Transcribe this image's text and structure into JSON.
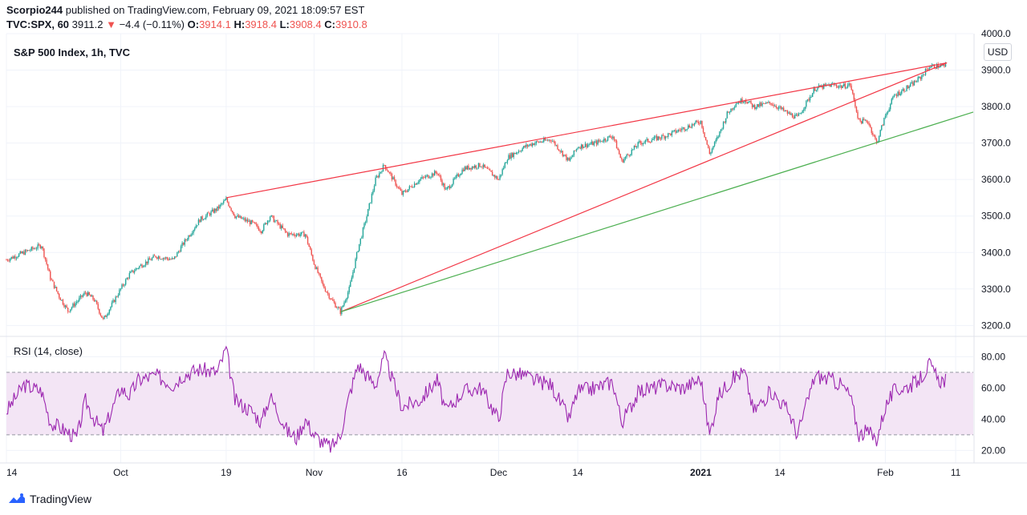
{
  "header": {
    "publisher": "Scorpio244",
    "published_text": "published on TradingView.com, February 09, 2021 18:09:57 EST",
    "symbol": "TVC:SPX, 60",
    "last": "3911.2",
    "change_arrow": "▼",
    "change": "−4.4 (−0.11%)",
    "o_label": "O:",
    "o_value": "3914.1",
    "h_label": "H:",
    "h_value": "3918.4",
    "l_label": "L:",
    "l_value": "3908.4",
    "c_label": "C:",
    "c_value": "3910.8"
  },
  "main_title": "S&P 500 Index, 1h, TVC",
  "currency": "USD",
  "rsi_title": "RSI (14, close)",
  "footer": {
    "brand": "TradingView"
  },
  "colors": {
    "up": "#26a69a",
    "down": "#ef5350",
    "rsi": "#9c27b0",
    "rsi_band": "#f3e5f5",
    "wedge": "#f23645",
    "support": "#4caf50"
  },
  "chart_data": [
    {
      "type": "candlestick",
      "title": "S&P 500 Index, 1h, TVC",
      "ylim": [
        3170,
        4000
      ],
      "yticks": [
        "4000.0",
        "3900.0",
        "3800.0",
        "3700.0",
        "3600.0",
        "3500.0",
        "3400.0",
        "3300.0",
        "3200.0"
      ],
      "x_ticks": [
        "14",
        "Oct",
        "19",
        "Nov",
        "16",
        "Dec",
        "14",
        "2021",
        "14",
        "Feb",
        "11"
      ],
      "x_range": [
        "2020-09-14",
        "2021-02-15"
      ],
      "close_path": [
        [
          "2020-09-14",
          3380
        ],
        [
          "2020-09-16",
          3400
        ],
        [
          "2020-09-18",
          3420
        ],
        [
          "2020-09-21",
          3330
        ],
        [
          "2020-09-22",
          3280
        ],
        [
          "2020-09-23",
          3240
        ],
        [
          "2020-09-25",
          3290
        ],
        [
          "2020-09-28",
          3270
        ],
        [
          "2020-09-29",
          3215
        ],
        [
          "2020-10-01",
          3300
        ],
        [
          "2020-10-02",
          3340
        ],
        [
          "2020-10-05",
          3360
        ],
        [
          "2020-10-07",
          3390
        ],
        [
          "2020-10-09",
          3380
        ],
        [
          "2020-10-12",
          3420
        ],
        [
          "2020-10-14",
          3490
        ],
        [
          "2020-10-16",
          3520
        ],
        [
          "2020-10-19",
          3545
        ],
        [
          "2020-10-20",
          3500
        ],
        [
          "2020-10-22",
          3480
        ],
        [
          "2020-10-23",
          3460
        ],
        [
          "2020-10-26",
          3500
        ],
        [
          "2020-10-28",
          3450
        ],
        [
          "2020-10-30",
          3450
        ],
        [
          "2020-11-02",
          3370
        ],
        [
          "2020-11-03",
          3310
        ],
        [
          "2020-11-04",
          3270
        ],
        [
          "2020-11-05",
          3237
        ],
        [
          "2020-11-06",
          3300
        ],
        [
          "2020-11-09",
          3410
        ],
        [
          "2020-11-10",
          3500
        ],
        [
          "2020-11-11",
          3600
        ],
        [
          "2020-11-12",
          3640
        ],
        [
          "2020-11-16",
          3560
        ],
        [
          "2020-11-18",
          3600
        ],
        [
          "2020-11-20",
          3620
        ],
        [
          "2020-11-23",
          3570
        ],
        [
          "2020-11-25",
          3630
        ],
        [
          "2020-11-27",
          3640
        ],
        [
          "2020-12-01",
          3600
        ],
        [
          "2020-12-02",
          3660
        ],
        [
          "2020-12-04",
          3690
        ],
        [
          "2020-12-07",
          3700
        ],
        [
          "2020-12-09",
          3710
        ],
        [
          "2020-12-11",
          3650
        ],
        [
          "2020-12-14",
          3690
        ],
        [
          "2020-12-16",
          3700
        ],
        [
          "2020-12-18",
          3720
        ],
        [
          "2020-12-21",
          3650
        ],
        [
          "2020-12-23",
          3700
        ],
        [
          "2020-12-28",
          3720
        ],
        [
          "2020-12-30",
          3740
        ],
        [
          "2021-01-01",
          3760
        ],
        [
          "2021-01-04",
          3670
        ],
        [
          "2021-01-05",
          3720
        ],
        [
          "2021-01-06",
          3780
        ],
        [
          "2021-01-07",
          3810
        ],
        [
          "2021-01-08",
          3820
        ],
        [
          "2021-01-11",
          3800
        ],
        [
          "2021-01-13",
          3810
        ],
        [
          "2021-01-15",
          3780
        ],
        [
          "2021-01-18",
          3770
        ],
        [
          "2021-01-20",
          3850
        ],
        [
          "2021-01-22",
          3860
        ],
        [
          "2021-01-25",
          3855
        ],
        [
          "2021-01-26",
          3860
        ],
        [
          "2021-01-27",
          3760
        ],
        [
          "2021-01-28",
          3760
        ],
        [
          "2021-01-29",
          3700
        ],
        [
          "2021-02-01",
          3775
        ],
        [
          "2021-02-02",
          3830
        ],
        [
          "2021-02-04",
          3860
        ],
        [
          "2021-02-05",
          3880
        ],
        [
          "2021-02-08",
          3910
        ],
        [
          "2021-02-09",
          3911
        ]
      ],
      "trendlines": [
        {
          "name": "upper",
          "color": "#f23645",
          "from": [
            "2020-10-19",
            3550
          ],
          "to": [
            "2021-02-10",
            3920
          ]
        },
        {
          "name": "lower",
          "color": "#f23645",
          "from": [
            "2020-11-05",
            3237
          ],
          "to": [
            "2021-02-10",
            3920
          ]
        },
        {
          "name": "support",
          "color": "#4caf50",
          "from": [
            "2020-11-05",
            3237
          ],
          "to": [
            "2021-02-15",
            3785
          ]
        }
      ]
    },
    {
      "type": "line",
      "title": "RSI (14, close)",
      "ylim": [
        12,
        92
      ],
      "yticks": [
        "80.00",
        "60.00",
        "40.00",
        "20.00"
      ],
      "bands": [
        70,
        30
      ],
      "series": [
        {
          "values": [
            [
              "2020-09-14",
              45
            ],
            [
              "2020-09-16",
              62
            ],
            [
              "2020-09-18",
              58
            ],
            [
              "2020-09-21",
              38
            ],
            [
              "2020-09-22",
              35
            ],
            [
              "2020-09-24",
              28
            ],
            [
              "2020-09-25",
              52
            ],
            [
              "2020-09-28",
              40
            ],
            [
              "2020-09-29",
              32
            ],
            [
              "2020-10-01",
              60
            ],
            [
              "2020-10-02",
              55
            ],
            [
              "2020-10-05",
              65
            ],
            [
              "2020-10-07",
              68
            ],
            [
              "2020-10-09",
              62
            ],
            [
              "2020-10-12",
              68
            ],
            [
              "2020-10-14",
              72
            ],
            [
              "2020-10-16",
              70
            ],
            [
              "2020-10-19",
              85
            ],
            [
              "2020-10-20",
              52
            ],
            [
              "2020-10-22",
              45
            ],
            [
              "2020-10-23",
              38
            ],
            [
              "2020-10-26",
              55
            ],
            [
              "2020-10-28",
              32
            ],
            [
              "2020-10-29",
              28
            ],
            [
              "2020-10-30",
              40
            ],
            [
              "2020-11-02",
              30
            ],
            [
              "2020-11-03",
              25
            ],
            [
              "2020-11-04",
              22
            ],
            [
              "2020-11-05",
              30
            ],
            [
              "2020-11-06",
              55
            ],
            [
              "2020-11-09",
              75
            ],
            [
              "2020-11-10",
              68
            ],
            [
              "2020-11-11",
              62
            ],
            [
              "2020-11-12",
              80
            ],
            [
              "2020-11-16",
              48
            ],
            [
              "2020-11-18",
              52
            ],
            [
              "2020-11-20",
              65
            ],
            [
              "2020-11-23",
              45
            ],
            [
              "2020-11-25",
              58
            ],
            [
              "2020-11-27",
              60
            ],
            [
              "2020-12-01",
              40
            ],
            [
              "2020-12-02",
              70
            ],
            [
              "2020-12-04",
              68
            ],
            [
              "2020-12-07",
              65
            ],
            [
              "2020-12-09",
              62
            ],
            [
              "2020-12-11",
              40
            ],
            [
              "2020-12-14",
              58
            ],
            [
              "2020-12-16",
              60
            ],
            [
              "2020-12-18",
              64
            ],
            [
              "2020-12-21",
              38
            ],
            [
              "2020-12-23",
              58
            ],
            [
              "2020-12-28",
              62
            ],
            [
              "2020-12-30",
              60
            ],
            [
              "2021-01-01",
              66
            ],
            [
              "2021-01-04",
              30
            ],
            [
              "2021-01-05",
              55
            ],
            [
              "2021-01-06",
              62
            ],
            [
              "2021-01-07",
              68
            ],
            [
              "2021-01-08",
              70
            ],
            [
              "2021-01-11",
              45
            ],
            [
              "2021-01-13",
              58
            ],
            [
              "2021-01-15",
              45
            ],
            [
              "2021-01-18",
              30
            ],
            [
              "2021-01-20",
              68
            ],
            [
              "2021-01-22",
              65
            ],
            [
              "2021-01-25",
              62
            ],
            [
              "2021-01-26",
              55
            ],
            [
              "2021-01-27",
              30
            ],
            [
              "2021-01-28",
              32
            ],
            [
              "2021-01-29",
              27
            ],
            [
              "2021-02-01",
              48
            ],
            [
              "2021-02-02",
              58
            ],
            [
              "2021-02-04",
              62
            ],
            [
              "2021-02-05",
              66
            ],
            [
              "2021-02-08",
              75
            ],
            [
              "2021-02-09",
              65
            ]
          ]
        }
      ]
    }
  ]
}
